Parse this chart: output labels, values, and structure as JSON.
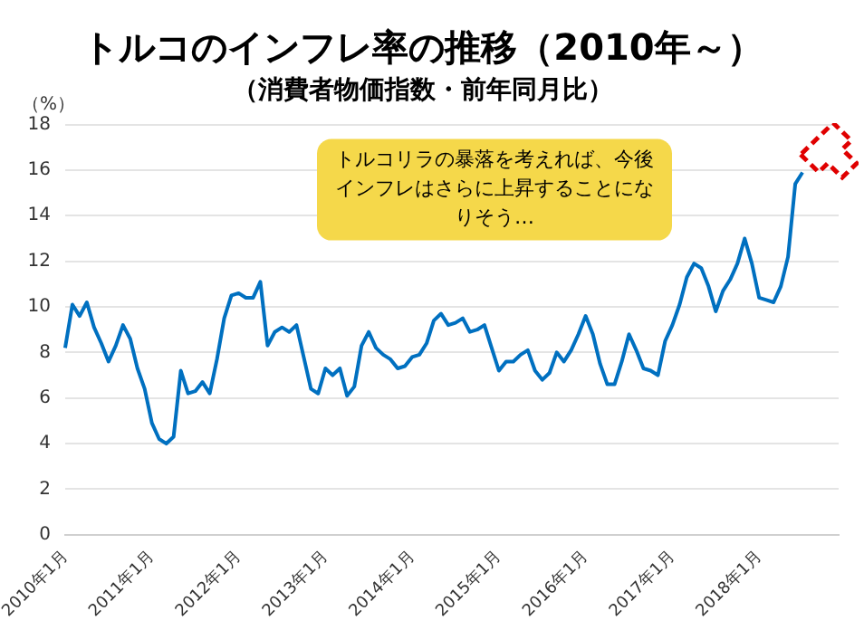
{
  "chart_data": {
    "type": "line",
    "title": "トルコのインフレ率の推移（2010年～）",
    "subtitle": "（消費者物価指数・前年同月比）",
    "ylabel": "（%）",
    "categories": [
      "2010年1月",
      null,
      null,
      null,
      null,
      null,
      null,
      null,
      null,
      null,
      null,
      null,
      "2011年1月",
      null,
      null,
      null,
      null,
      null,
      null,
      null,
      null,
      null,
      null,
      null,
      "2012年1月",
      null,
      null,
      null,
      null,
      null,
      null,
      null,
      null,
      null,
      null,
      null,
      "2013年1月",
      null,
      null,
      null,
      null,
      null,
      null,
      null,
      null,
      null,
      null,
      null,
      "2014年1月",
      null,
      null,
      null,
      null,
      null,
      null,
      null,
      null,
      null,
      null,
      null,
      "2015年1月",
      null,
      null,
      null,
      null,
      null,
      null,
      null,
      null,
      null,
      null,
      null,
      "2016年1月",
      null,
      null,
      null,
      null,
      null,
      null,
      null,
      null,
      null,
      null,
      null,
      "2017年1月",
      null,
      null,
      null,
      null,
      null,
      null,
      null,
      null,
      null,
      null,
      null,
      "2018年1月",
      null,
      null,
      null,
      null,
      null,
      null,
      null,
      null,
      null,
      null,
      null
    ],
    "series": [
      {
        "color": "#0070c0",
        "values": [
          8.2,
          10.1,
          9.6,
          10.2,
          9.1,
          8.4,
          7.6,
          8.3,
          9.2,
          8.6,
          7.3,
          6.4,
          4.9,
          4.2,
          4.0,
          4.3,
          7.2,
          6.2,
          6.3,
          6.7,
          6.2,
          7.7,
          9.5,
          10.5,
          10.6,
          10.4,
          10.4,
          11.1,
          8.3,
          8.9,
          9.1,
          8.9,
          9.2,
          7.8,
          6.4,
          6.2,
          7.3,
          7.0,
          7.3,
          6.1,
          6.5,
          8.3,
          8.9,
          8.2,
          7.9,
          7.7,
          7.3,
          7.4,
          7.8,
          7.9,
          8.4,
          9.4,
          9.7,
          9.2,
          9.3,
          9.5,
          8.9,
          9.0,
          9.2,
          8.2,
          7.2,
          7.6,
          7.6,
          7.9,
          8.1,
          7.2,
          6.8,
          7.1,
          8.0,
          7.6,
          8.1,
          8.8,
          9.6,
          8.8,
          7.5,
          6.6,
          6.6,
          7.6,
          8.8,
          8.1,
          7.3,
          7.2,
          7.0,
          8.5,
          9.2,
          10.1,
          11.3,
          11.9,
          11.7,
          10.9,
          9.8,
          10.7,
          11.2,
          11.9,
          13.0,
          11.9,
          10.4,
          10.3,
          10.2,
          10.9,
          12.2,
          15.4,
          15.9,
          null,
          null,
          null,
          null,
          null
        ]
      }
    ],
    "ylim": [
      0,
      18
    ],
    "yticks": [
      0,
      2,
      4,
      6,
      8,
      10,
      12,
      14,
      16,
      18
    ],
    "grid": "y",
    "legend": false,
    "marker": "none",
    "line_style": "solid",
    "annotations": [
      "トルコリラの暴落を考えれば、今後インフレはさらに上昇することになりそう…"
    ]
  }
}
